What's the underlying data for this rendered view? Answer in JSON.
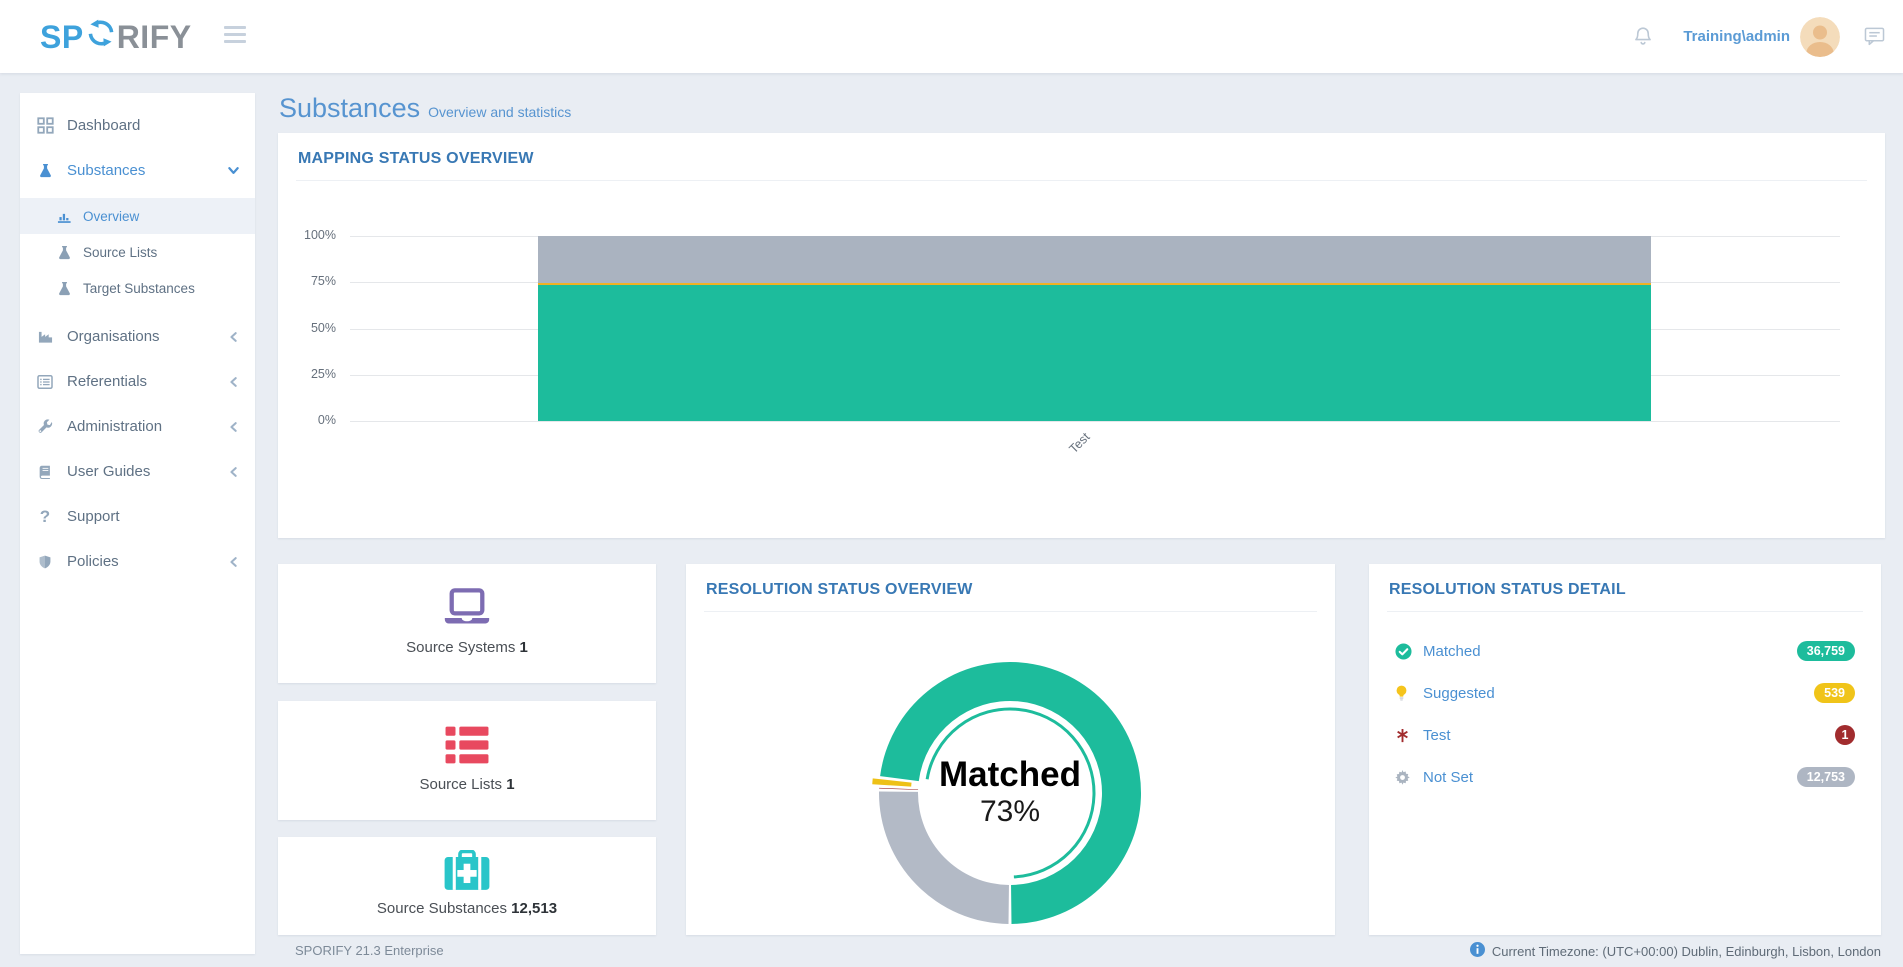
{
  "header": {
    "logo": {
      "prefix": "SP",
      "suffix": "RIFY"
    },
    "user": "Training\\admin"
  },
  "sidebar": {
    "items": [
      {
        "label": "Dashboard",
        "icon": "grid"
      },
      {
        "label": "Substances",
        "icon": "flask",
        "active": true,
        "chevron": "down",
        "children": [
          {
            "label": "Overview",
            "icon": "chart",
            "active": true
          },
          {
            "label": "Source Lists",
            "icon": "flask"
          },
          {
            "label": "Target Substances",
            "icon": "flask"
          }
        ]
      },
      {
        "label": "Organisations",
        "icon": "industry",
        "chevron": "left"
      },
      {
        "label": "Referentials",
        "icon": "list",
        "chevron": "left"
      },
      {
        "label": "Administration",
        "icon": "wrench",
        "chevron": "left"
      },
      {
        "label": "User Guides",
        "icon": "book",
        "chevron": "left"
      },
      {
        "label": "Support",
        "icon": "question"
      },
      {
        "label": "Policies",
        "icon": "shield",
        "chevron": "left"
      }
    ]
  },
  "page": {
    "title": "Substances",
    "subtitle": "Overview and statistics"
  },
  "mapping_card": {
    "title": "MAPPING STATUS OVERVIEW"
  },
  "stats": [
    {
      "label": "Source Systems",
      "value": "1",
      "icon": "laptop"
    },
    {
      "label": "Source Lists",
      "value": "1",
      "icon": "rows"
    },
    {
      "label": "Source Substances",
      "value": "12,513",
      "icon": "medkit"
    }
  ],
  "resolution_overview": {
    "title": "RESOLUTION STATUS OVERVIEW"
  },
  "resolution_detail": {
    "title": "RESOLUTION STATUS DETAIL",
    "rows": [
      {
        "label": "Matched",
        "count": "36,759",
        "icon": "check",
        "badge_color": "#1dbc9c",
        "badge": "pill"
      },
      {
        "label": "Suggested",
        "count": "539",
        "icon": "bulb",
        "badge_color": "#f0c419",
        "badge": "pill"
      },
      {
        "label": "Test",
        "count": "1",
        "icon": "asterisk",
        "badge_color": "#a12c2e",
        "badge": "circle"
      },
      {
        "label": "Not Set",
        "count": "12,753",
        "icon": "gear",
        "badge_color": "#aeb6c3",
        "badge": "pill"
      }
    ]
  },
  "chart_data": [
    {
      "id": "mapping-status-overview",
      "type": "bar",
      "stacked": true,
      "title": "MAPPING STATUS OVERVIEW",
      "categories": [
        "Test"
      ],
      "series": [
        {
          "name": "Matched",
          "count": 36759,
          "values": [
            73.4
          ],
          "color": "#1dbc9c"
        },
        {
          "name": "Suggested",
          "count": 539,
          "values": [
            1.1
          ],
          "color": "#f0b123"
        },
        {
          "name": "Test",
          "count": 1,
          "values": [
            0.0
          ],
          "color": "#9e2c2e"
        },
        {
          "name": "Not Set",
          "count": 12753,
          "values": [
            25.5
          ],
          "color": "#aab3c0"
        }
      ],
      "xlabel": "",
      "ylabel": "",
      "yticks": [
        "0%",
        "25%",
        "50%",
        "75%",
        "100%"
      ],
      "ylim": [
        0,
        100
      ],
      "grid": true,
      "legend": false
    },
    {
      "id": "resolution-status-overview",
      "type": "pie",
      "title": "RESOLUTION STATUS OVERVIEW",
      "slices": [
        {
          "label": "Matched",
          "count": 36759,
          "pct": 73.4,
          "color": "#1dbc9c",
          "selected": true
        },
        {
          "label": "Suggested",
          "count": 539,
          "pct": 1.1,
          "color": "#eec117",
          "exploded": true
        },
        {
          "label": "Test",
          "count": 1,
          "pct": 0.0,
          "color": "#9e2c2e"
        },
        {
          "label": "Not Set",
          "count": 12753,
          "pct": 25.5,
          "color": "#b3bac6"
        }
      ],
      "center": {
        "label": "Matched",
        "value": "73%"
      },
      "start": "bottom",
      "direction": "counterclockwise",
      "legend": false
    }
  ],
  "footer": {
    "left": "SPORIFY 21.3 Enterprise",
    "right": "Current Timezone: (UTC+00:00) Dublin, Edinburgh, Lisbon, London"
  }
}
